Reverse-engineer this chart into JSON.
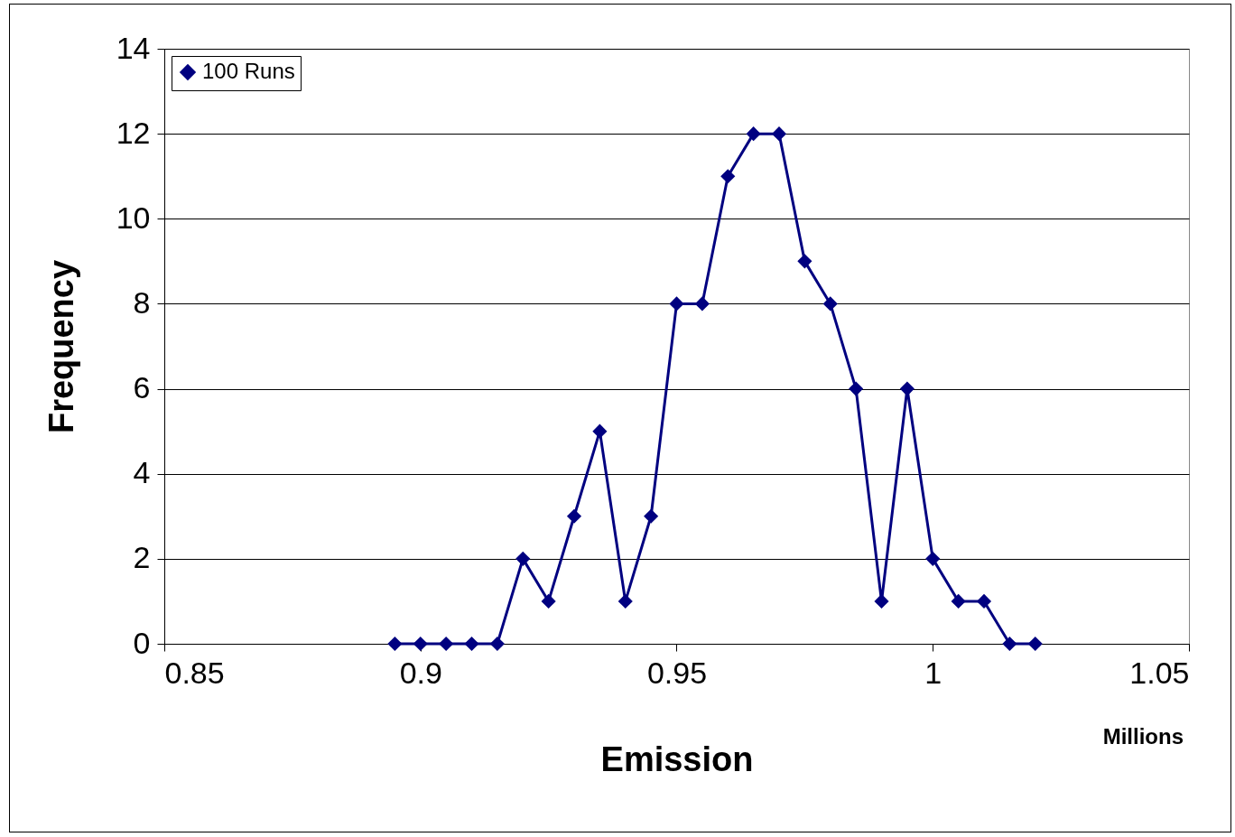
{
  "chart_data": {
    "type": "line",
    "xlabel": "Emission",
    "ylabel": "Frequency",
    "annotations": [
      "Millions"
    ],
    "x": [
      0.895,
      0.9,
      0.905,
      0.91,
      0.915,
      0.92,
      0.925,
      0.93,
      0.935,
      0.94,
      0.945,
      0.95,
      0.955,
      0.96,
      0.965,
      0.97,
      0.975,
      0.98,
      0.985,
      0.99,
      0.995,
      1.0,
      1.005,
      1.01,
      1.015,
      1.02
    ],
    "series": [
      {
        "name": "100 Runs",
        "color": "#000080",
        "values": [
          0,
          0,
          0,
          0,
          0,
          2,
          1,
          3,
          5,
          1,
          3,
          8,
          8,
          11,
          12,
          12,
          9,
          8,
          6,
          1,
          6,
          2,
          1,
          1,
          0,
          0
        ]
      }
    ],
    "xlim": [
      0.85,
      1.05
    ],
    "xticks": [
      0.85,
      0.9,
      0.95,
      1,
      1.05
    ],
    "ylim": [
      0,
      14
    ],
    "yticks": [
      0,
      2,
      4,
      6,
      8,
      10,
      12,
      14
    ],
    "grid": "y",
    "legend": "top left",
    "marker": "diamond",
    "line_style": "solid"
  }
}
